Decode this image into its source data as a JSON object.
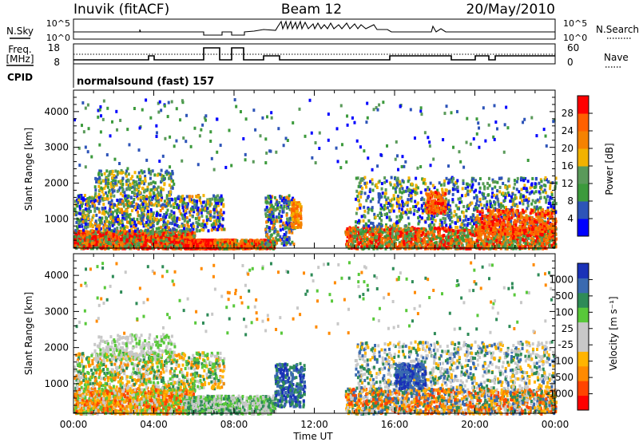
{
  "header": {
    "station": "Inuvik (fitACF)",
    "beam": "Beam 12",
    "date": "20/May/2010"
  },
  "noise_panel": {
    "left_label": "N.Sky",
    "right_label": "N.Search",
    "ticks_left": [
      "10^5",
      "10^0"
    ],
    "ticks_right": [
      "10^5",
      "10^0"
    ]
  },
  "freq_panel": {
    "left_label_line1": "Freq.",
    "left_label_line2": "[MHz]",
    "right_label": "Nave",
    "ticks_left": [
      "18",
      "8"
    ],
    "ticks_right": [
      "60",
      "0"
    ]
  },
  "cpid": {
    "label": "CPID",
    "text": "normalsound (fast) 157"
  },
  "chart_data": [
    {
      "type": "heatmap",
      "name": "power",
      "ylabel": "Slant Range [km]",
      "ylim": [
        180,
        4600
      ],
      "yticks": [
        "1000",
        "2000",
        "3000",
        "4000"
      ],
      "colorbar": {
        "label": "Power [dB]",
        "ticks": [
          "28",
          "24",
          "20",
          "16",
          "12",
          "8",
          "4"
        ],
        "colors": [
          "#0000ff",
          "#2d54b8",
          "#3c9a3c",
          "#5a9a5a",
          "#f2b200",
          "#f58200",
          "#ff6000",
          "#ff0000"
        ]
      }
    },
    {
      "type": "heatmap",
      "name": "velocity",
      "ylabel": "Slant Range [km]",
      "ylim": [
        180,
        4600
      ],
      "yticks": [
        "1000",
        "2000",
        "3000",
        "4000"
      ],
      "colorbar": {
        "label": "Velocity [m s⁻¹]",
        "ticks": [
          "1000",
          "500",
          "100",
          "25",
          "-25",
          "-100",
          "-500",
          "-1000"
        ],
        "colors": [
          "#ff0000",
          "#ff4400",
          "#ff8a00",
          "#ffb400",
          "#c8c8c8",
          "#c8c8c8",
          "#58c83a",
          "#2e8b57",
          "#3a6ab0",
          "#1a32b8"
        ]
      },
      "xlabel": "Time UT",
      "xticks": [
        "00:00",
        "04:00",
        "08:00",
        "12:00",
        "16:00",
        "20:00",
        "00:00"
      ]
    }
  ]
}
